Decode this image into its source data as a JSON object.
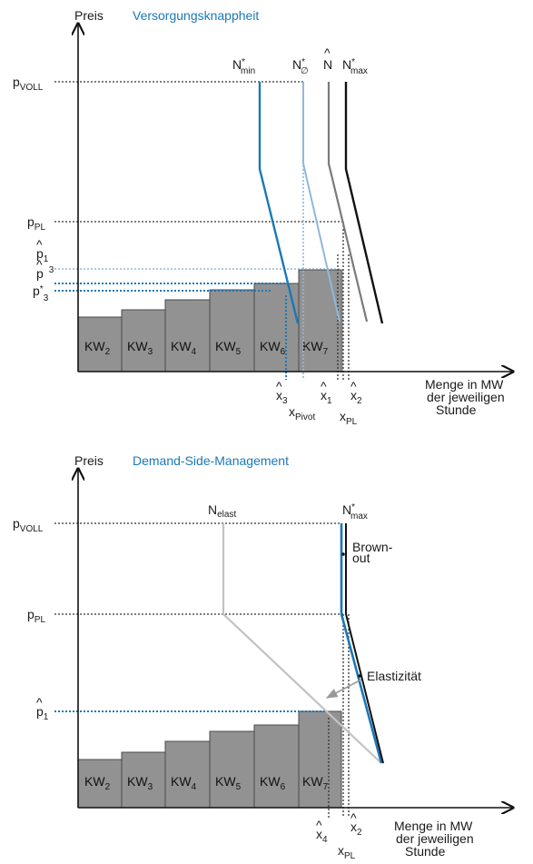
{
  "panel1": {
    "title": "Versorgungsknappheit",
    "y_axis_label": "Preis",
    "x_axis_label": [
      "Menge in MW",
      "der jeweiligen",
      "Stunde"
    ],
    "price_labels": [
      {
        "base": "p",
        "sub": "VOLL",
        "sup": "",
        "hat": false
      },
      {
        "base": "p",
        "sub": "PL",
        "sup": "",
        "hat": false
      },
      {
        "base": "p",
        "sub": "1",
        "sup": "",
        "hat": true
      },
      {
        "base": "p",
        "sub": "3",
        "sup": "",
        "hat": true
      },
      {
        "base": "p",
        "sub": "3",
        "sup": "*",
        "hat": false
      }
    ],
    "curve_labels": [
      {
        "base": "N",
        "sup": "*",
        "sub": "min",
        "hat": false
      },
      {
        "base": "N",
        "sup": "*",
        "sub": "∅",
        "hat": false
      },
      {
        "base": "N",
        "sup": "",
        "sub": "",
        "hat": true
      },
      {
        "base": "N",
        "sup": "*",
        "sub": "max",
        "hat": false
      }
    ],
    "quantity_labels": [
      {
        "base": "x",
        "sub": "3",
        "hat": true
      },
      {
        "base": "x",
        "sub": "1",
        "hat": true
      },
      {
        "base": "x",
        "sub": "2",
        "hat": true
      },
      {
        "base": "x",
        "sub": "Pivot",
        "hat": false
      },
      {
        "base": "x",
        "sub": "PL",
        "hat": false
      }
    ],
    "plants": [
      {
        "name": "KW",
        "sub": "2",
        "level": 1.0
      },
      {
        "name": "KW",
        "sub": "3",
        "level": 1.25
      },
      {
        "name": "KW",
        "sub": "4",
        "level": 1.55
      },
      {
        "name": "KW",
        "sub": "5",
        "level": 1.9
      },
      {
        "name": "KW",
        "sub": "6",
        "level": 2.2
      },
      {
        "name": "KW",
        "sub": "7",
        "level": 2.6
      }
    ]
  },
  "panel2": {
    "title": "Demand-Side-Management",
    "y_axis_label": "Preis",
    "x_axis_label": [
      "Menge in MW",
      "der jeweiligen",
      "Stunde"
    ],
    "price_labels": [
      {
        "base": "p",
        "sub": "VOLL",
        "sup": "",
        "hat": false
      },
      {
        "base": "p",
        "sub": "PL",
        "sup": "",
        "hat": false
      },
      {
        "base": "p",
        "sub": "1",
        "sup": "",
        "hat": true
      }
    ],
    "curve_labels": [
      {
        "base": "N",
        "sup": "",
        "sub": "elast",
        "hat": false
      },
      {
        "base": "N",
        "sup": "*",
        "sub": "max",
        "hat": false
      }
    ],
    "annotations": {
      "brownout": [
        "Brown-",
        "out"
      ],
      "elasticity": "Elastizität"
    },
    "quantity_labels": [
      {
        "base": "x",
        "sub": "4",
        "hat": true
      },
      {
        "base": "x",
        "sub": "2",
        "hat": true
      },
      {
        "base": "x",
        "sub": "PL",
        "hat": false
      }
    ],
    "plants": [
      {
        "name": "KW",
        "sub": "2",
        "level": 1.0
      },
      {
        "name": "KW",
        "sub": "3",
        "level": 1.3
      },
      {
        "name": "KW",
        "sub": "4",
        "level": 1.6
      },
      {
        "name": "KW",
        "sub": "5",
        "level": 1.95
      },
      {
        "name": "KW",
        "sub": "6",
        "level": 2.1
      },
      {
        "name": "KW",
        "sub": "7",
        "level": 2.55
      }
    ]
  },
  "colors": {
    "blue": "#1a78b8",
    "light_blue": "#8fb8dc",
    "gray_bar": "#929292",
    "gray_curve": "#7a7a7a",
    "light_gray": "#c2c2c2"
  }
}
